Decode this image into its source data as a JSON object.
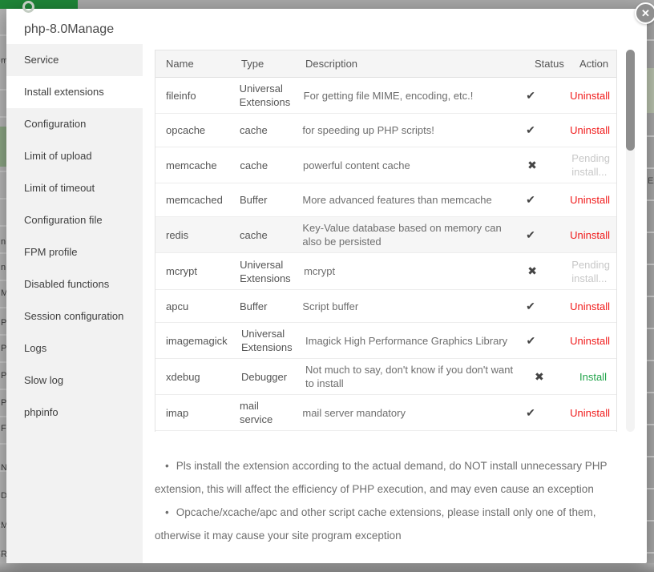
{
  "window": {
    "title": "php-8.0Manage",
    "close_icon": "✕"
  },
  "sidebar": {
    "items": [
      {
        "label": "Service",
        "active": false
      },
      {
        "label": "Install extensions",
        "active": true
      },
      {
        "label": "Configuration",
        "active": false
      },
      {
        "label": "Limit of upload",
        "active": false
      },
      {
        "label": "Limit of timeout",
        "active": false
      },
      {
        "label": "Configuration file",
        "active": false
      },
      {
        "label": "FPM profile",
        "active": false
      },
      {
        "label": "Disabled functions",
        "active": false
      },
      {
        "label": "Session configuration",
        "active": false
      },
      {
        "label": "Logs",
        "active": false
      },
      {
        "label": "Slow log",
        "active": false
      },
      {
        "label": "phpinfo",
        "active": false
      }
    ]
  },
  "table": {
    "columns": {
      "name": "Name",
      "type": "Type",
      "description": "Description",
      "status": "Status",
      "action": "Action"
    },
    "status_icons": {
      "ok": "✔",
      "fail": "✖"
    },
    "rows": [
      {
        "name": "fileinfo",
        "type": "Universal Extensions",
        "description": "For getting file MIME, encoding, etc.!",
        "status": "ok",
        "action": {
          "label": "Uninstall",
          "kind": "uninstall"
        },
        "highlight": false
      },
      {
        "name": "opcache",
        "type": "cache",
        "description": "for speeding up PHP scripts!",
        "status": "ok",
        "action": {
          "label": "Uninstall",
          "kind": "uninstall"
        },
        "highlight": false
      },
      {
        "name": "memcache",
        "type": "cache",
        "description": "powerful content cache",
        "status": "fail",
        "action": {
          "label": "Pending install...",
          "kind": "pending"
        },
        "highlight": false
      },
      {
        "name": "memcached",
        "type": "Buffer",
        "description": "More advanced features than memcache",
        "status": "ok",
        "action": {
          "label": "Uninstall",
          "kind": "uninstall"
        },
        "highlight": false
      },
      {
        "name": "redis",
        "type": "cache",
        "description": "Key-Value database based on memory can also be persisted",
        "status": "ok",
        "action": {
          "label": "Uninstall",
          "kind": "uninstall"
        },
        "highlight": true
      },
      {
        "name": "mcrypt",
        "type": "Universal Extensions",
        "description": "mcrypt",
        "status": "fail",
        "action": {
          "label": "Pending install...",
          "kind": "pending"
        },
        "highlight": false
      },
      {
        "name": "apcu",
        "type": "Buffer",
        "description": "Script buffer",
        "status": "ok",
        "action": {
          "label": "Uninstall",
          "kind": "uninstall"
        },
        "highlight": false
      },
      {
        "name": "imagemagick",
        "type": "Universal Extensions",
        "description": "Imagick High Performance Graphics Library",
        "status": "ok",
        "action": {
          "label": "Uninstall",
          "kind": "uninstall"
        },
        "highlight": false
      },
      {
        "name": "xdebug",
        "type": "Debugger",
        "description": "Not much to say, don't know if you don't want to install",
        "status": "fail",
        "action": {
          "label": "Install",
          "kind": "install"
        },
        "highlight": false
      },
      {
        "name": "imap",
        "type": "mail service",
        "description": "mail server mandatory",
        "status": "ok",
        "action": {
          "label": "Uninstall",
          "kind": "uninstall"
        },
        "highlight": false
      }
    ]
  },
  "notes": {
    "bullet": "•",
    "items": [
      "Pls install the extension according to the actual demand, do NOT install unnecessary PHP extension, this will affect the efficiency of PHP execution, and may even cause an exception",
      "Opcache/xcache/apc and other script cache extensions, please install only one of them, otherwise it may cause your site program exception"
    ]
  },
  "background": {
    "left_fragments": [
      "m",
      "n",
      "n",
      "M",
      "Pl",
      "Pl",
      "Pl",
      "Pu",
      "Fa",
      "N",
      "D",
      "M",
      "Re"
    ],
    "right_fragments": [
      "Ex"
    ]
  },
  "colors": {
    "uninstall_red": "#f01b1b",
    "install_green": "#21a44a",
    "pending_gray": "#c8c8c8",
    "status_dark": "#444444",
    "header_green": "#1f8638"
  }
}
